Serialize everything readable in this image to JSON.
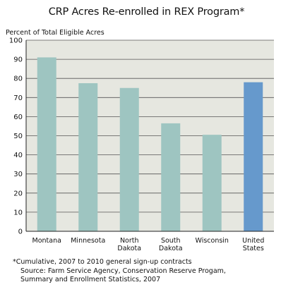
{
  "chart_data": {
    "type": "bar",
    "title": "CRP Acres Re-enrolled in REX Program*",
    "ylabel": "Percent of Total Eligible Acres",
    "xlabel": "",
    "ylim": [
      0,
      100
    ],
    "yticks": [
      0,
      10,
      20,
      30,
      40,
      50,
      60,
      70,
      80,
      90,
      100
    ],
    "grid": true,
    "categories": [
      [
        "Montana"
      ],
      [
        "Minnesota"
      ],
      [
        "North",
        "Dakota"
      ],
      [
        "South",
        "Dakota"
      ],
      [
        "Wisconsin"
      ],
      [
        "United",
        "States"
      ]
    ],
    "values": [
      91,
      77.5,
      75,
      56.5,
      50.5,
      78
    ],
    "colors": [
      "#9ec5c1",
      "#9ec5c1",
      "#9ec5c1",
      "#9ec5c1",
      "#9ec5c1",
      "#6699cc"
    ]
  },
  "footnote": "*Cumulative, 2007 to 2010 general sign-up contracts",
  "source_lines": [
    "Source: Farm Service Agency, Conservation Reserve Progam,",
    "Summary and Enrollment Statistics, 2007"
  ],
  "colors": {
    "plot_background": "#e6e7e0",
    "gridline": "#555555",
    "state_bar": "#9ec5c1",
    "us_bar": "#6699cc"
  }
}
